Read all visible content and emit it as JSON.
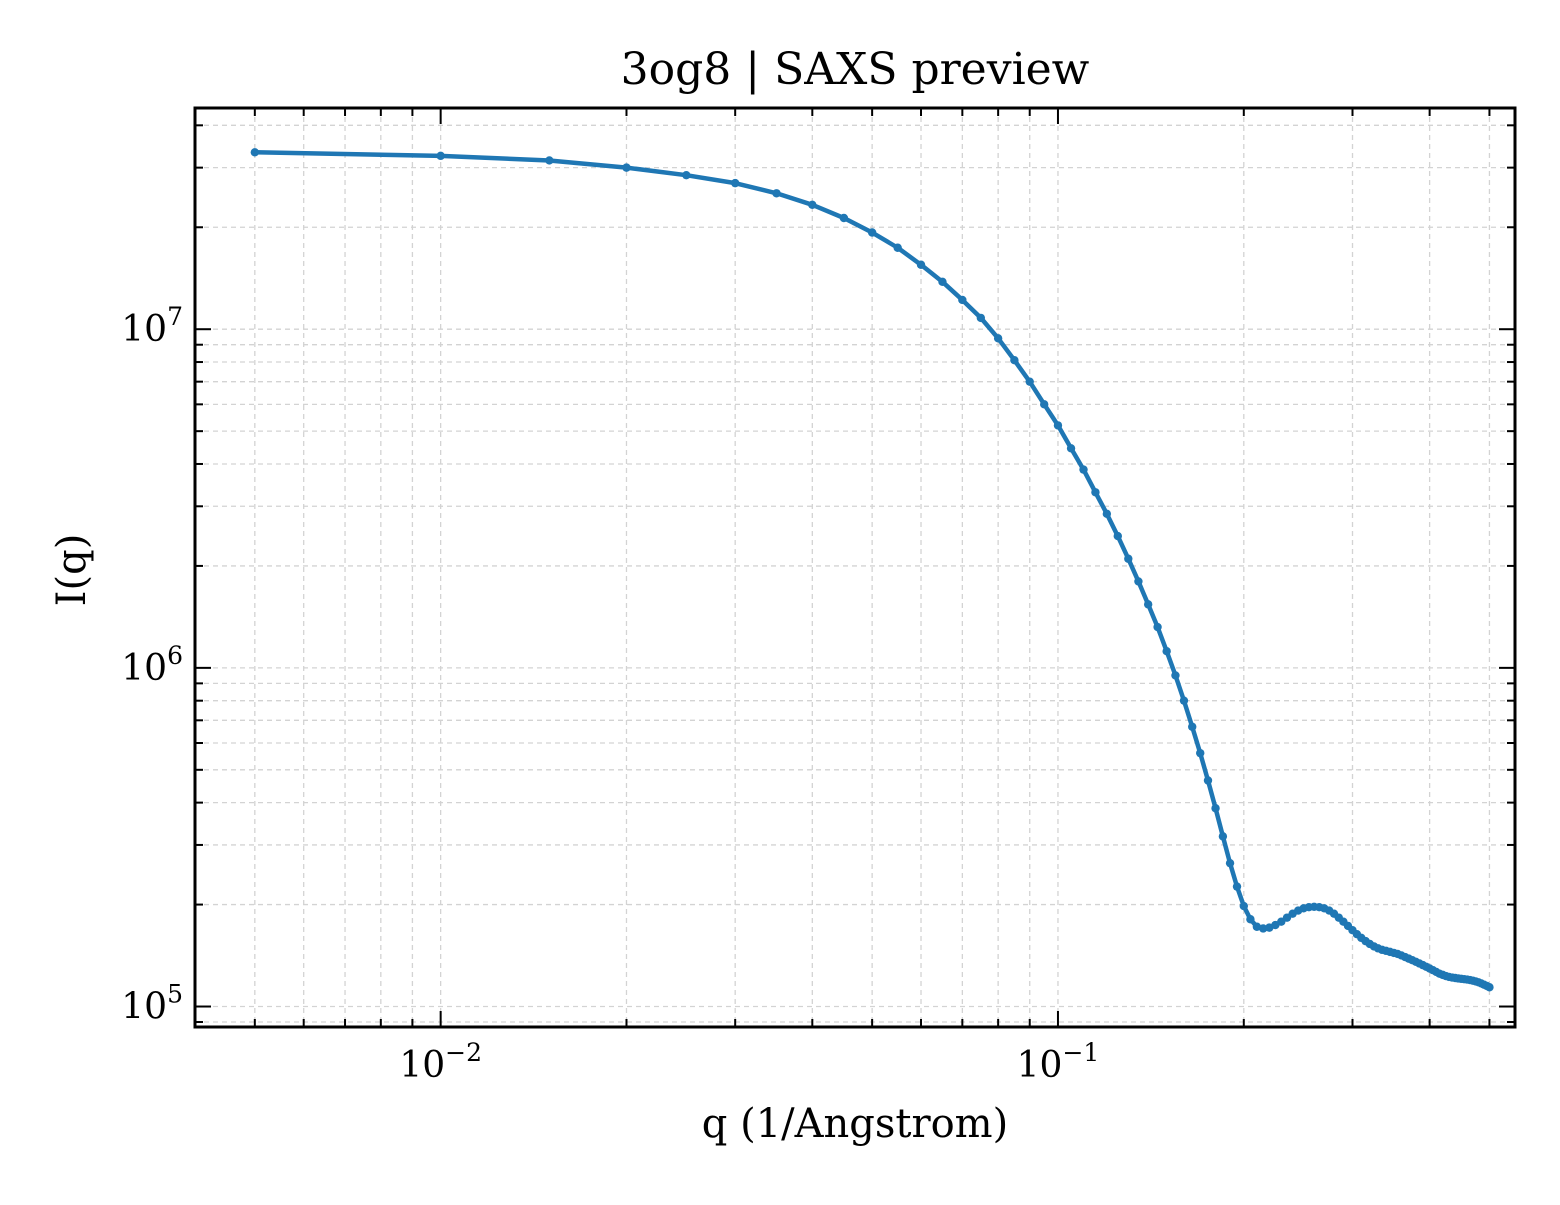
{
  "chart_data": {
    "type": "line",
    "title": "3og8 | SAXS preview",
    "xlabel": "q (1/Angstrom)",
    "ylabel": "I(q)",
    "xscale": "log",
    "yscale": "log",
    "xlim": [
      0.004,
      0.55
    ],
    "ylim": [
      87000,
      45000000
    ],
    "grid": "on (major and minor, dashed)",
    "legend": "none",
    "x_ticks": [
      {
        "value": 0.01,
        "base": "10",
        "exp": "−2"
      },
      {
        "value": 0.1,
        "base": "10",
        "exp": "−1"
      }
    ],
    "y_ticks": [
      {
        "value": 100000,
        "base": "10",
        "exp": "5"
      },
      {
        "value": 1000000,
        "base": "10",
        "exp": "6"
      },
      {
        "value": 10000000,
        "base": "10",
        "exp": "7"
      }
    ],
    "series": [
      {
        "color": "#1f77b4",
        "marker": "dot",
        "x": [
          0.005,
          0.01,
          0.015,
          0.02,
          0.025,
          0.03,
          0.035,
          0.04,
          0.045,
          0.05,
          0.055,
          0.06,
          0.065,
          0.07,
          0.075,
          0.08,
          0.085,
          0.09,
          0.095,
          0.1,
          0.105,
          0.11,
          0.115,
          0.12,
          0.125,
          0.13,
          0.135,
          0.14,
          0.145,
          0.15,
          0.155,
          0.16,
          0.165,
          0.17,
          0.175,
          0.18,
          0.185,
          0.19,
          0.195,
          0.2,
          0.205,
          0.21,
          0.215,
          0.22,
          0.225,
          0.23,
          0.235,
          0.24,
          0.245,
          0.25,
          0.255,
          0.26,
          0.265,
          0.27,
          0.275,
          0.28,
          0.285,
          0.29,
          0.295,
          0.3,
          0.305,
          0.31,
          0.315,
          0.32,
          0.325,
          0.33,
          0.335,
          0.34,
          0.345,
          0.35,
          0.355,
          0.36,
          0.365,
          0.37,
          0.375,
          0.38,
          0.385,
          0.39,
          0.395,
          0.4,
          0.405,
          0.41,
          0.415,
          0.42,
          0.425,
          0.43,
          0.435,
          0.44,
          0.445,
          0.45,
          0.455,
          0.46,
          0.465,
          0.47,
          0.475,
          0.48,
          0.485,
          0.49,
          0.495,
          0.5
        ],
        "y": [
          33300000,
          32500000,
          31500000,
          30000000,
          28500000,
          27000000,
          25200000,
          23300000,
          21300000,
          19300000,
          17400000,
          15500000,
          13800000,
          12200000,
          10800000,
          9400000,
          8100000,
          7000000,
          6000000,
          5200000,
          4450000,
          3850000,
          3300000,
          2850000,
          2450000,
          2100000,
          1800000,
          1540000,
          1320000,
          1120000,
          950000,
          800000,
          670000,
          560000,
          465000,
          385000,
          318000,
          265000,
          226000,
          198000,
          181000,
          172000,
          170000,
          171000,
          174000,
          178000,
          183000,
          188000,
          192000,
          195000,
          196500,
          197000,
          196500,
          195000,
          192000,
          188000,
          183000,
          178000,
          173000,
          168000,
          163500,
          159500,
          156000,
          153000,
          150500,
          148500,
          147000,
          146000,
          145000,
          144000,
          143000,
          141500,
          140000,
          138500,
          137000,
          135500,
          134000,
          132500,
          131000,
          129500,
          128000,
          126500,
          125000,
          124000,
          123000,
          122300,
          121800,
          121400,
          121000,
          120700,
          120400,
          120100,
          119700,
          119200,
          118600,
          117900,
          117000,
          116000,
          115000,
          114000
        ]
      }
    ]
  }
}
